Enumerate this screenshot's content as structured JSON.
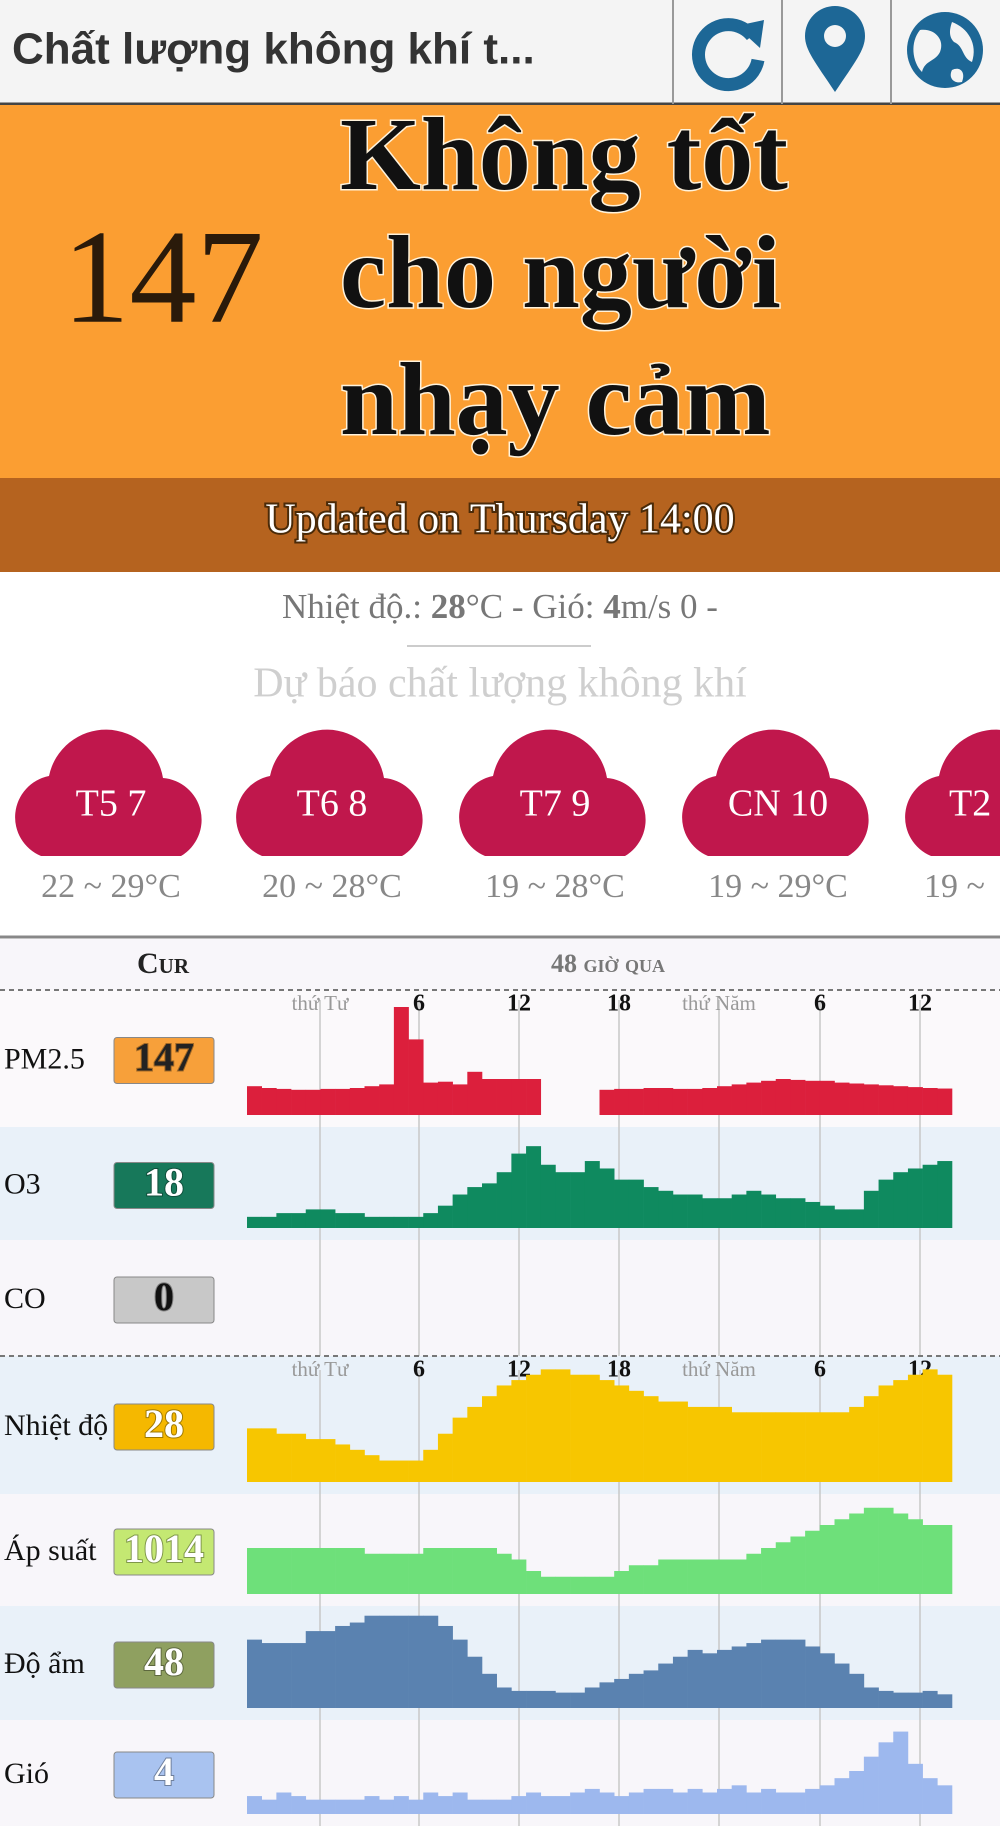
{
  "header": {
    "title": "Chất lượng không khí t..."
  },
  "aqi": {
    "value": 147,
    "status": [
      "Không tốt",
      "cho người",
      "nhạy cảm"
    ],
    "updated": "Updated on Thursday 14:00"
  },
  "weather": {
    "temp_label": "Nhiệt độ.: ",
    "temp": 28,
    "temp_unit": "°C - Gió: ",
    "wind": 4,
    "wind_unit": "m/s 0 -"
  },
  "forecast": {
    "title": "Dự báo chất lượng không khí",
    "color": "#c0174c",
    "days": [
      {
        "label": "T5 7",
        "range": "22 ~ 29°C"
      },
      {
        "label": "T6 8",
        "range": "20 ~ 28°C"
      },
      {
        "label": "T7 9",
        "range": "19 ~ 28°C"
      },
      {
        "label": "CN 10",
        "range": "19 ~ 29°C"
      },
      {
        "label": "T2",
        "range": "19 ~"
      }
    ]
  },
  "history": {
    "cur_label": "Cur",
    "period": "48 giờ qua",
    "hour_labels": [
      "thứ Tư",
      "6",
      "12",
      "18",
      "thứ Năm",
      "6",
      "12"
    ],
    "rows": [
      {
        "name": "PM2.5",
        "current": 147,
        "box_color": "#f7a03a",
        "label_color": "#222",
        "color": "#dc1f3c",
        "ylim": [
          0,
          650
        ],
        "values": [
          160,
          150,
          145,
          140,
          140,
          145,
          145,
          150,
          160,
          170,
          600,
          420,
          180,
          185,
          170,
          240,
          200,
          200,
          200,
          200,
          null,
          null,
          null,
          null,
          140,
          145,
          145,
          150,
          150,
          145,
          145,
          150,
          160,
          170,
          180,
          190,
          200,
          195,
          190,
          190,
          180,
          175,
          170,
          165,
          160,
          155,
          150,
          147
        ]
      },
      {
        "name": "O3",
        "current": 18,
        "box_color": "#17785a",
        "label_color": "#fff",
        "color": "#0f8a5f",
        "ylim": [
          0,
          25
        ],
        "values": [
          3,
          3,
          4,
          4,
          5,
          5,
          4,
          4,
          3,
          3,
          3,
          3,
          4,
          6,
          9,
          11,
          12,
          15,
          20,
          22,
          17,
          15,
          15,
          18,
          16,
          13,
          13,
          11,
          10,
          9,
          9,
          8,
          8,
          9,
          10,
          9,
          8,
          8,
          7,
          6,
          5,
          5,
          10,
          13,
          15,
          16,
          17,
          18
        ]
      },
      {
        "name": "CO",
        "current": 0,
        "box_color": "#c8c8c8",
        "label_color": "#111"
      },
      {
        "name": "Nhiệt độ",
        "current": 28,
        "box_color": "#f5b800",
        "label_color": "#fff",
        "color": "#f7c600",
        "ylim": [
          18,
          29
        ],
        "values": [
          23,
          23,
          22.5,
          22.5,
          22,
          22,
          21.5,
          21,
          20.5,
          20,
          20,
          20,
          21,
          22.5,
          24,
          25,
          26,
          27,
          27.5,
          28,
          28.5,
          28.5,
          28,
          28,
          27.5,
          27,
          26.5,
          26,
          25.5,
          25.5,
          25,
          25,
          25,
          24.5,
          24.5,
          24.5,
          24.5,
          24.5,
          24.5,
          24.5,
          24.5,
          25,
          26,
          27,
          27.5,
          28,
          28.5,
          28
        ]
      },
      {
        "name": "Áp suất",
        "current": 1014,
        "box_color": "#c4e872",
        "label_color": "#fff",
        "color": "#6ee07a",
        "ylim": [
          1008,
          1016
        ],
        "values": [
          1012,
          1012,
          1012,
          1012,
          1012,
          1012,
          1012,
          1012,
          1011.5,
          1011.5,
          1011.5,
          1011.5,
          1012,
          1012,
          1012,
          1012,
          1012,
          1011.5,
          1011,
          1010,
          1009.5,
          1009.5,
          1009.5,
          1009.5,
          1009.5,
          1010,
          1010.5,
          1010.5,
          1011,
          1011,
          1011,
          1011,
          1011,
          1011,
          1011.5,
          1012,
          1012.5,
          1013,
          1013.5,
          1014,
          1014.5,
          1015,
          1015.5,
          1015.5,
          1015,
          1014.5,
          1014,
          1014
        ]
      },
      {
        "name": "Độ ẩm",
        "current": 48,
        "box_color": "#8fa060",
        "label_color": "#fff",
        "color": "#5a82b0",
        "ylim": [
          40,
          95
        ],
        "values": [
          80,
          78,
          78,
          78,
          85,
          85,
          88,
          90,
          94,
          94,
          94,
          94,
          94,
          88,
          80,
          70,
          60,
          52,
          50,
          50,
          50,
          49,
          49,
          52,
          55,
          57,
          60,
          62,
          66,
          70,
          74,
          72,
          74,
          76,
          78,
          80,
          80,
          80,
          76,
          72,
          66,
          60,
          52,
          50,
          49,
          49,
          50,
          48
        ]
      },
      {
        "name": "Gió",
        "current": 4,
        "box_color": "#a9c3f0",
        "label_color": "#fff",
        "color": "#9db8ee",
        "ylim": [
          0,
          12
        ],
        "values": [
          2.5,
          2,
          3,
          2.5,
          2,
          2,
          2,
          2,
          2.5,
          2,
          2.5,
          2,
          3,
          2.5,
          3,
          2,
          2,
          2,
          2.5,
          3,
          2.5,
          2.5,
          3,
          3.5,
          3,
          2.5,
          3,
          3.5,
          3.5,
          3,
          3.5,
          3,
          3.5,
          4,
          3,
          3.5,
          3,
          3,
          3.5,
          4,
          5,
          6,
          8,
          10,
          11.5,
          7,
          5,
          4
        ]
      }
    ]
  }
}
